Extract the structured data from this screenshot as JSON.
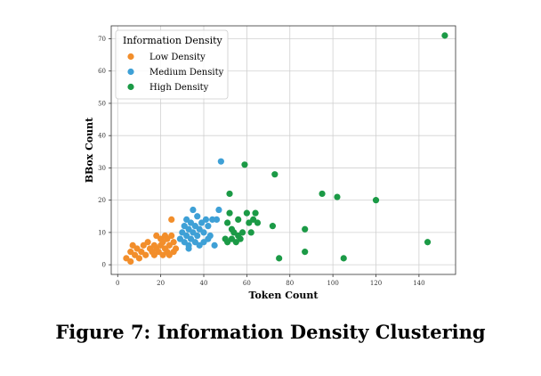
{
  "caption": "Figure 7: Information Density Clustering",
  "chart_data": {
    "type": "scatter",
    "xlabel": "Token Count",
    "ylabel": "BBox Count",
    "xlim": [
      -3,
      157
    ],
    "ylim": [
      -3,
      74
    ],
    "xticks": [
      0,
      20,
      40,
      60,
      80,
      100,
      120,
      140
    ],
    "yticks": [
      0,
      10,
      20,
      30,
      40,
      50,
      60,
      70
    ],
    "grid": true,
    "legend": {
      "title": "Information Density",
      "placement": "top-left"
    },
    "series": [
      {
        "name": "Low Density",
        "color": "#f28e2b",
        "points": [
          [
            4,
            2
          ],
          [
            6,
            1
          ],
          [
            6,
            4
          ],
          [
            7,
            6
          ],
          [
            8,
            3
          ],
          [
            9,
            5
          ],
          [
            10,
            2
          ],
          [
            11,
            4
          ],
          [
            12,
            6
          ],
          [
            13,
            3
          ],
          [
            14,
            7
          ],
          [
            15,
            5
          ],
          [
            16,
            4
          ],
          [
            17,
            6
          ],
          [
            17,
            3
          ],
          [
            18,
            9
          ],
          [
            18,
            5
          ],
          [
            19,
            4
          ],
          [
            20,
            6
          ],
          [
            20,
            8
          ],
          [
            21,
            3
          ],
          [
            21,
            7
          ],
          [
            22,
            5
          ],
          [
            22,
            9
          ],
          [
            23,
            4
          ],
          [
            23,
            8
          ],
          [
            24,
            6
          ],
          [
            24,
            3
          ],
          [
            25,
            9
          ],
          [
            25,
            14
          ],
          [
            26,
            7
          ],
          [
            26,
            4
          ],
          [
            27,
            5
          ]
        ]
      },
      {
        "name": "Medium Density",
        "color": "#3ea0d6",
        "points": [
          [
            29,
            8
          ],
          [
            30,
            10
          ],
          [
            31,
            12
          ],
          [
            31,
            7
          ],
          [
            32,
            14
          ],
          [
            32,
            9
          ],
          [
            33,
            11
          ],
          [
            33,
            6
          ],
          [
            34,
            13
          ],
          [
            34,
            8
          ],
          [
            35,
            10
          ],
          [
            35,
            17
          ],
          [
            36,
            12
          ],
          [
            36,
            7
          ],
          [
            37,
            15
          ],
          [
            37,
            9
          ],
          [
            38,
            11
          ],
          [
            38,
            6
          ],
          [
            39,
            13
          ],
          [
            40,
            10
          ],
          [
            40,
            7
          ],
          [
            41,
            14
          ],
          [
            42,
            12
          ],
          [
            42,
            8
          ],
          [
            43,
            9
          ],
          [
            44,
            14
          ],
          [
            45,
            6
          ],
          [
            46,
            14
          ],
          [
            47,
            17
          ],
          [
            48,
            32
          ],
          [
            33,
            5
          ]
        ]
      },
      {
        "name": "High Density",
        "color": "#1b9a46",
        "points": [
          [
            50,
            8
          ],
          [
            51,
            13
          ],
          [
            51,
            7
          ],
          [
            52,
            22
          ],
          [
            52,
            16
          ],
          [
            53,
            11
          ],
          [
            53,
            8
          ],
          [
            54,
            10
          ],
          [
            55,
            7
          ],
          [
            56,
            14
          ],
          [
            56,
            9
          ],
          [
            57,
            8
          ],
          [
            58,
            10
          ],
          [
            59,
            31
          ],
          [
            60,
            16
          ],
          [
            61,
            13
          ],
          [
            62,
            10
          ],
          [
            63,
            14
          ],
          [
            64,
            16
          ],
          [
            65,
            13
          ],
          [
            72,
            12
          ],
          [
            73,
            28
          ],
          [
            75,
            2
          ],
          [
            87,
            11
          ],
          [
            87,
            4
          ],
          [
            95,
            22
          ],
          [
            102,
            21
          ],
          [
            105,
            2
          ],
          [
            120,
            20
          ],
          [
            144,
            7
          ],
          [
            152,
            71
          ]
        ]
      }
    ]
  }
}
